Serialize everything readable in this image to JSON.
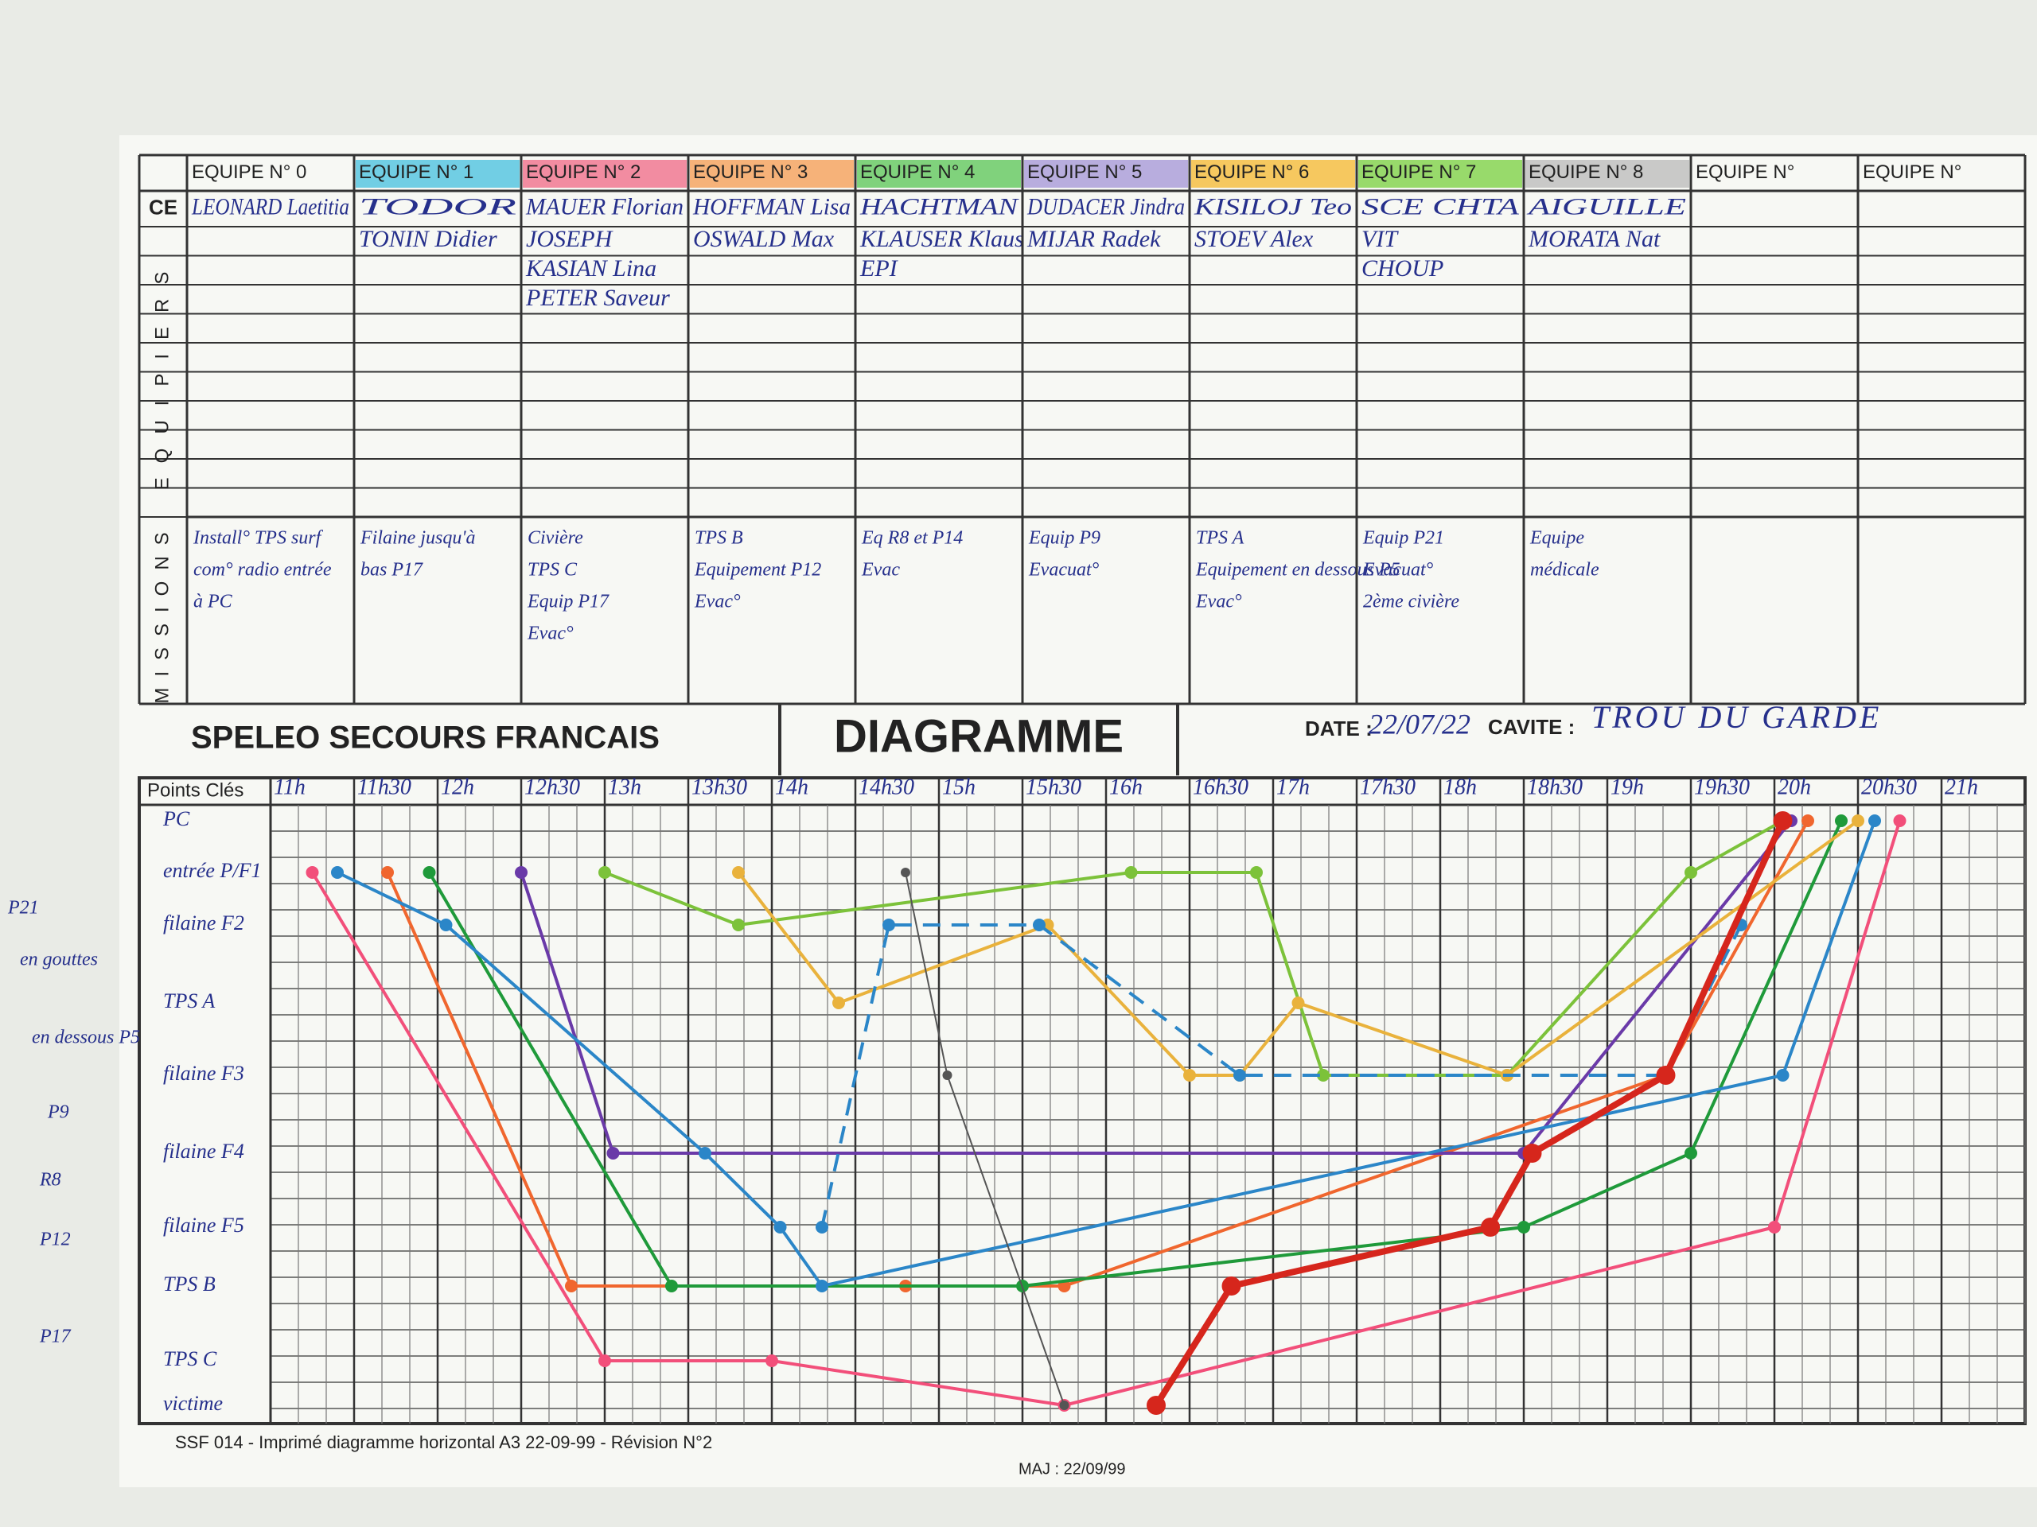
{
  "header": {
    "org": "SPELEO SECOURS FRANCAIS",
    "title": "DIAGRAMME",
    "date_label": "DATE :",
    "date": "22/07/22",
    "cavite_label": "CAVITE :",
    "cavite": "TROU DU GARDE"
  },
  "table": {
    "ce_label": "CE",
    "equipiers_label": "EQUIPIERS",
    "missions_label": "MISSIONS",
    "teams": [
      {
        "label": "EQUIPE N° 0",
        "ce": "LEONARD Laetitia",
        "members": [],
        "missions": [
          "Install° TPS surf",
          "com° radio entrée",
          "à PC"
        ]
      },
      {
        "label": "EQUIPE N° 1",
        "color": "#4fc3e0",
        "ce": "TODOR",
        "members": [
          "TONIN Didier"
        ],
        "missions": [
          "Filaine jusqu'à",
          "bas P17"
        ]
      },
      {
        "label": "EQUIPE N° 2",
        "color": "#f0708c",
        "ce": "MAUER Florian",
        "members": [
          "JOSEPH",
          "KASIAN Lina",
          "PETER Saveur"
        ],
        "missions": [
          "Civière",
          "TPS C",
          "Equip P17",
          "Evac°"
        ]
      },
      {
        "label": "EQUIPE N° 3",
        "color": "#f5a05a",
        "ce": "HOFFMAN Lisa",
        "members": [
          "OSWALD Max"
        ],
        "missions": [
          "TPS B",
          "Equipement P12",
          "Evac°"
        ]
      },
      {
        "label": "EQUIPE N° 4",
        "color": "#62c85e",
        "ce": "HACHTMAN",
        "members": [
          "KLAUSER Klaus",
          "EPI"
        ],
        "missions": [
          "Eq R8 et P14",
          "Evac"
        ]
      },
      {
        "label": "EQUIPE N° 5",
        "color": "#a79ad8",
        "ce": "DUDACER Jindra",
        "members": [
          "MIJAR Radek"
        ],
        "missions": [
          "Equip P9",
          "Evacuat°"
        ]
      },
      {
        "label": "EQUIPE N° 6",
        "color": "#f5bc3a",
        "ce": "KISILOJ Teo",
        "members": [
          "STOEV Alex"
        ],
        "missions": [
          "TPS A",
          "Equipement en dessous P5",
          "Evac°"
        ]
      },
      {
        "label": "EQUIPE N° 7",
        "color": "#7fd248",
        "ce": "SCE CHTA",
        "members": [
          "VIT",
          "CHOUP"
        ],
        "missions": [
          "Equip P21",
          "Evacuat°",
          "2ème civière"
        ]
      },
      {
        "label": "EQUIPE N° 8",
        "color": "#bdbdbd",
        "ce": "AIGUILLE",
        "members": [
          "MORATA Nat"
        ],
        "missions": [
          "Equipe",
          "médicale"
        ]
      },
      {
        "label": "EQUIPE N°",
        "members": [],
        "missions": []
      },
      {
        "label": "EQUIPE N°",
        "members": [],
        "missions": []
      }
    ]
  },
  "chart_data": {
    "type": "line",
    "y_label": "Points Clés",
    "categories": [
      "PC",
      "entrée P/F1",
      "filaine F2",
      "TPS A",
      "filaine F3",
      "filaine F4",
      "filaine F5",
      "TPS B",
      "TPS C",
      "victime"
    ],
    "xlim": [
      11,
      21.5
    ],
    "xticks": [
      {
        "value": 11,
        "label": "11h"
      },
      {
        "value": 11.5,
        "label": "11h30"
      },
      {
        "value": 12,
        "label": "12h"
      },
      {
        "value": 12.5,
        "label": "12h30"
      },
      {
        "value": 13,
        "label": "13h"
      },
      {
        "value": 13.5,
        "label": "13h30"
      },
      {
        "value": 14,
        "label": "14h"
      },
      {
        "value": 14.5,
        "label": "14h30"
      },
      {
        "value": 15,
        "label": "15h"
      },
      {
        "value": 15.5,
        "label": "15h30"
      },
      {
        "value": 16,
        "label": "16h"
      },
      {
        "value": 16.5,
        "label": "16h30"
      },
      {
        "value": 17,
        "label": "17h"
      },
      {
        "value": 17.5,
        "label": "17h30"
      },
      {
        "value": 18,
        "label": "18h"
      },
      {
        "value": 18.5,
        "label": "18h30"
      },
      {
        "value": 19,
        "label": "19h"
      },
      {
        "value": 19.5,
        "label": "19h30"
      },
      {
        "value": 20,
        "label": "20h"
      },
      {
        "value": 20.5,
        "label": "20h30"
      },
      {
        "value": 21,
        "label": "21h"
      }
    ],
    "grid": true,
    "series": [
      {
        "color": "#f24f7a",
        "x": [
          11.25,
          13,
          14,
          15.75,
          20,
          20.75
        ],
        "values": [
          "entrée P/F1",
          "TPS C",
          "TPS C",
          "victime",
          "filaine F5",
          "PC"
        ]
      },
      {
        "color": "#f0662e",
        "x": [
          11.7,
          12.8,
          14.8,
          15.75,
          19.35,
          20.2
        ],
        "values": [
          "entrée P/F1",
          "TPS B",
          "TPS B",
          "TPS B",
          "filaine F3",
          "PC"
        ]
      },
      {
        "color": "#1f9a3a",
        "x": [
          11.95,
          13.4,
          15.5,
          18.5,
          19.5,
          20.4
        ],
        "values": [
          "entrée P/F1",
          "TPS B",
          "TPS B",
          "filaine F5",
          "filaine F4",
          "PC"
        ]
      },
      {
        "color": "#6a3aa8",
        "x": [
          12.5,
          13.05,
          18.5,
          20.1
        ],
        "values": [
          "entrée P/F1",
          "filaine F4",
          "filaine F4",
          "PC"
        ]
      },
      {
        "color": "#2b86c8",
        "x": [
          11.4,
          12.05,
          13.6,
          14.05,
          14.3,
          20.05,
          20.6
        ],
        "values": [
          "entrée P/F1",
          "filaine F2",
          "filaine F4",
          "filaine F5",
          "TPS B",
          "filaine F3",
          "PC"
        ]
      },
      {
        "color": "#7cc23a",
        "x": [
          13,
          13.8,
          16.15,
          16.9,
          17.3,
          18.4,
          19.5,
          20.05
        ],
        "values": [
          "entrée P/F1",
          "filaine F2",
          "entrée P/F1",
          "entrée P/F1",
          "filaine F3",
          "filaine F3",
          "entrée P/F1",
          "PC"
        ]
      },
      {
        "color": "#e9b23c",
        "x": [
          13.8,
          14.4,
          15.65,
          16.5,
          16.8,
          17.15,
          18.4,
          20.5
        ],
        "values": [
          "entrée P/F1",
          "TPS A",
          "filaine F2",
          "filaine F3",
          "filaine F3",
          "TPS A",
          "filaine F3",
          "PC"
        ]
      },
      {
        "color": "#2b86c8",
        "dashed": true,
        "x": [
          14.3,
          14.7,
          15.6,
          16.8,
          19.35,
          19.8
        ],
        "values": [
          "filaine F5",
          "filaine F2",
          "filaine F2",
          "filaine F3",
          "filaine F3",
          "filaine F2"
        ]
      },
      {
        "color": "#555555",
        "line_width": 2,
        "x": [
          14.8,
          15.05,
          15.75
        ],
        "values": [
          "entrée P/F1",
          "filaine F3",
          "victime"
        ]
      },
      {
        "color": "#d6261c",
        "line_width": 8,
        "x": [
          16.3,
          16.75,
          18.3,
          18.55,
          19.35,
          20.05
        ],
        "values": [
          "victime",
          "TPS B",
          "filaine F5",
          "filaine F4",
          "filaine F3",
          "PC"
        ]
      }
    ]
  },
  "footer": {
    "form": "SSF 014 - Imprimé diagramme horizontal A3 22-09-99 - Révision N°2",
    "maj": "MAJ : 22/09/99"
  },
  "margin_notes": [
    "P21",
    "en gouttes",
    "en dessous P5",
    "P9",
    "R8",
    "P12",
    "P17"
  ]
}
